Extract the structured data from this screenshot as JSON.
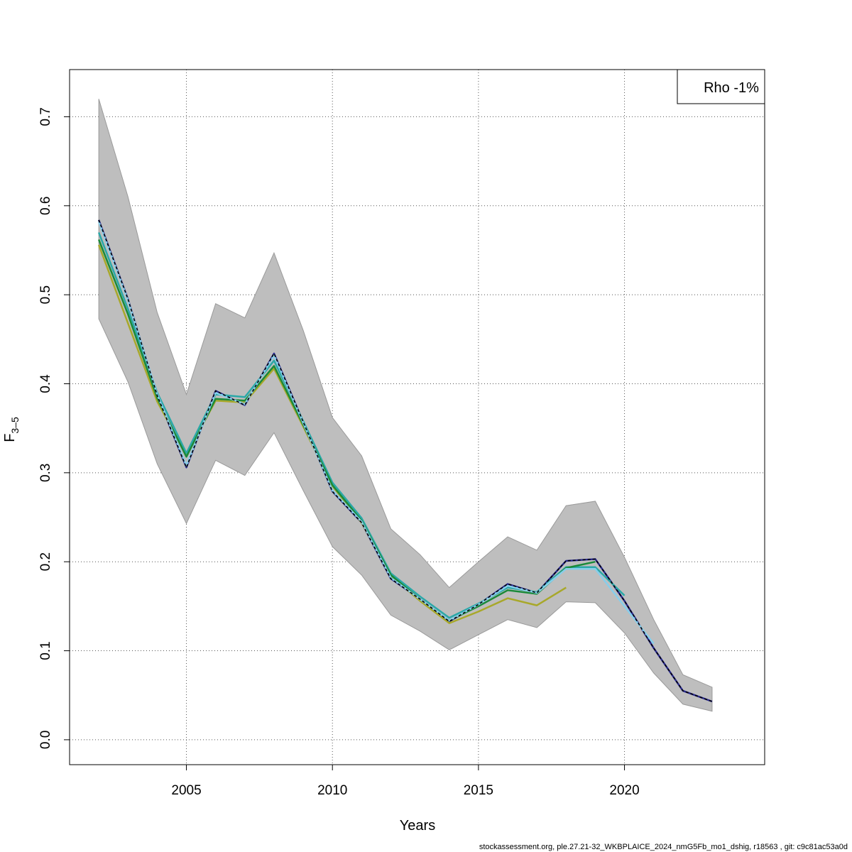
{
  "chart_data": {
    "type": "line",
    "xlabel": "Years",
    "ylabel_main": "F",
    "ylabel_sub": "3–5",
    "xlim": [
      2001.0,
      2024.8
    ],
    "ylim": [
      -0.028,
      0.753
    ],
    "x_ticks": [
      2005,
      2010,
      2015,
      2020
    ],
    "y_ticks": [
      0.0,
      0.1,
      0.2,
      0.3,
      0.4,
      0.5,
      0.6,
      0.7
    ],
    "y_tick_labels": [
      "0.0",
      "0.1",
      "0.2",
      "0.3",
      "0.4",
      "0.5",
      "0.6",
      "0.7"
    ],
    "grid": true,
    "legend": {
      "placement": "top-right",
      "text": "Rho -1%"
    },
    "confidence_band": {
      "color": "#bebebe",
      "x": [
        2002,
        2003,
        2004,
        2005,
        2006,
        2007,
        2008,
        2009,
        2010,
        2011,
        2012,
        2013,
        2014,
        2015,
        2016,
        2017,
        2018,
        2019,
        2020,
        2021,
        2022,
        2023
      ],
      "lower": [
        0.473,
        0.402,
        0.31,
        0.243,
        0.314,
        0.297,
        0.345,
        0.28,
        0.217,
        0.185,
        0.14,
        0.122,
        0.101,
        0.118,
        0.135,
        0.126,
        0.155,
        0.154,
        0.12,
        0.075,
        0.04,
        0.032
      ],
      "upper": [
        0.72,
        0.61,
        0.48,
        0.388,
        0.49,
        0.474,
        0.547,
        0.46,
        0.362,
        0.319,
        0.237,
        0.208,
        0.171,
        0.2,
        0.228,
        0.213,
        0.263,
        0.268,
        0.205,
        0.135,
        0.073,
        0.059
      ]
    },
    "series": [
      {
        "color": "#2a2a8f",
        "x": [
          2002,
          2003,
          2004,
          2005,
          2006,
          2007,
          2008,
          2009,
          2010,
          2011,
          2012,
          2013,
          2014,
          2015,
          2016,
          2017,
          2018,
          2019,
          2020,
          2021,
          2022,
          2023
        ],
        "y": [
          0.584,
          0.495,
          0.387,
          0.306,
          0.392,
          0.376,
          0.434,
          0.357,
          0.279,
          0.244,
          0.181,
          0.158,
          0.133,
          0.152,
          0.175,
          0.165,
          0.201,
          0.203,
          0.156,
          0.103,
          0.055,
          0.043
        ]
      },
      {
        "color": "#a8a82a",
        "x": [
          2002,
          2003,
          2004,
          2005,
          2006,
          2007,
          2008,
          2009,
          2010,
          2011,
          2012,
          2013,
          2014,
          2015,
          2016,
          2017,
          2018
        ],
        "y": [
          0.556,
          0.468,
          0.38,
          0.32,
          0.381,
          0.379,
          0.417,
          0.352,
          0.285,
          0.244,
          0.184,
          0.156,
          0.131,
          0.144,
          0.159,
          0.151,
          0.171
        ]
      },
      {
        "color": "#2aa8a8",
        "x": [
          2002,
          2003,
          2004,
          2005,
          2006,
          2007,
          2008,
          2009,
          2010,
          2011,
          2012,
          2013,
          2014,
          2015,
          2016,
          2017,
          2018,
          2019,
          2020
        ],
        "y": [
          0.57,
          0.484,
          0.39,
          0.322,
          0.388,
          0.385,
          0.426,
          0.358,
          0.289,
          0.249,
          0.187,
          0.161,
          0.137,
          0.153,
          0.171,
          0.166,
          0.194,
          0.194,
          0.162
        ]
      },
      {
        "color": "#1a8a3a",
        "x": [
          2002,
          2003,
          2004,
          2005,
          2006,
          2007,
          2008,
          2009,
          2010,
          2011,
          2012,
          2013,
          2014,
          2015,
          2016,
          2017,
          2018,
          2019
        ],
        "y": [
          0.562,
          0.478,
          0.384,
          0.318,
          0.383,
          0.381,
          0.42,
          0.354,
          0.286,
          0.246,
          0.185,
          0.158,
          0.134,
          0.15,
          0.168,
          0.164,
          0.193,
          0.2
        ]
      },
      {
        "color": "#87ceeb",
        "x": [
          2002,
          2003,
          2004,
          2005,
          2006,
          2007,
          2008,
          2009,
          2010,
          2011,
          2012,
          2013,
          2014,
          2015,
          2016,
          2017,
          2018,
          2019,
          2020,
          2021
        ],
        "y": [
          0.582,
          0.494,
          0.388,
          0.308,
          0.39,
          0.377,
          0.432,
          0.356,
          0.28,
          0.245,
          0.182,
          0.158,
          0.134,
          0.152,
          0.173,
          0.165,
          0.192,
          0.192,
          0.15,
          0.108
        ]
      },
      {
        "color": "#000000",
        "dashed": true,
        "x": [
          2002,
          2003,
          2004,
          2005,
          2006,
          2007,
          2008,
          2009,
          2010,
          2011,
          2012,
          2013,
          2014,
          2015,
          2016,
          2017,
          2018,
          2019,
          2020,
          2021,
          2022,
          2023
        ],
        "y": [
          0.584,
          0.495,
          0.387,
          0.306,
          0.392,
          0.376,
          0.434,
          0.357,
          0.279,
          0.244,
          0.181,
          0.158,
          0.133,
          0.152,
          0.175,
          0.165,
          0.201,
          0.203,
          0.156,
          0.103,
          0.055,
          0.043
        ]
      }
    ]
  },
  "footer": "stockassessment.org, ple.27.21-32_WKBPLAICE_2024_nmG5Fb_mo1_dshig, r18563 , git: c9c81ac53a0d"
}
